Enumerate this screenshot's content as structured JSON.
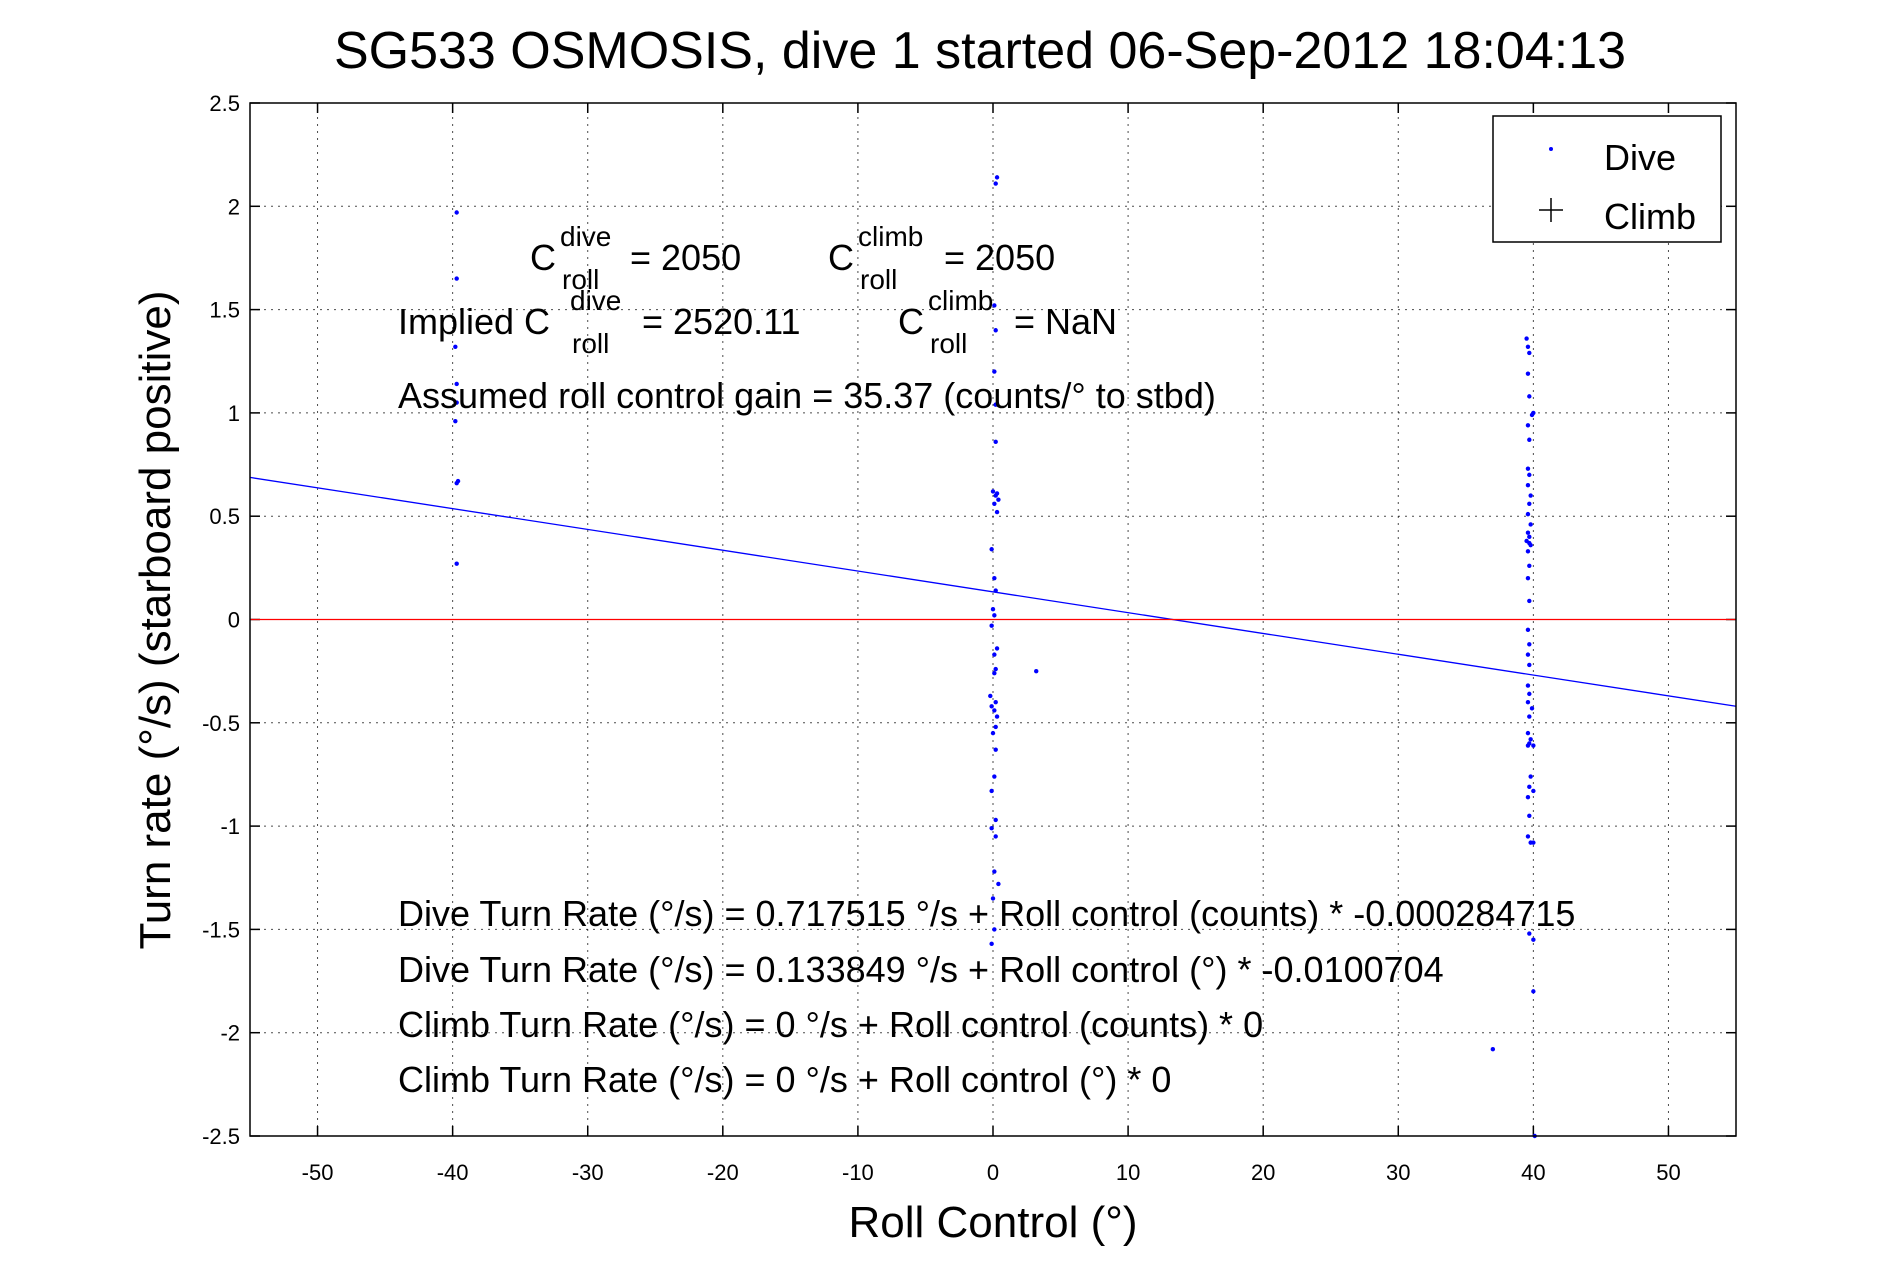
{
  "chart_data": {
    "type": "scatter",
    "title": "SG533 OSMOSIS, dive 1 started 06-Sep-2012 18:04:13",
    "xlabel": "Roll Control (°)",
    "ylabel": "Turn rate (°/s) (starboard positive)",
    "xlim": [
      -55,
      55
    ],
    "ylim": [
      -2.5,
      2.5
    ],
    "xticks": [
      -50,
      -40,
      -30,
      -20,
      -10,
      0,
      10,
      20,
      30,
      40,
      50
    ],
    "yticks": [
      -2.5,
      -2,
      -1.5,
      -1,
      -0.5,
      0,
      0.5,
      1,
      1.5,
      2,
      2.5
    ],
    "grid": true,
    "legend_position": "top-right",
    "legend": [
      {
        "label": "Dive",
        "marker": "dot",
        "color": "#0000ff"
      },
      {
        "label": "Climb",
        "marker": "plus",
        "color": "#000000"
      }
    ],
    "series": [
      {
        "name": "Dive",
        "color": "#0000ff",
        "points": [
          [
            -39.7,
            1.97
          ],
          [
            -39.7,
            1.65
          ],
          [
            -39.8,
            1.32
          ],
          [
            -39.7,
            1.14
          ],
          [
            -39.7,
            1.05
          ],
          [
            -39.8,
            0.96
          ],
          [
            -39.7,
            0.66
          ],
          [
            -39.6,
            0.67
          ],
          [
            -39.7,
            0.27
          ],
          [
            0.3,
            2.14
          ],
          [
            0.2,
            2.11
          ],
          [
            0.1,
            1.52
          ],
          [
            0.2,
            1.4
          ],
          [
            0.1,
            1.2
          ],
          [
            0.2,
            1.04
          ],
          [
            0.2,
            0.86
          ],
          [
            0.0,
            0.62
          ],
          [
            0.3,
            0.61
          ],
          [
            0.2,
            0.6
          ],
          [
            0.4,
            0.58
          ],
          [
            0.1,
            0.56
          ],
          [
            0.3,
            0.52
          ],
          [
            -0.1,
            0.34
          ],
          [
            0.1,
            0.2
          ],
          [
            0.2,
            0.14
          ],
          [
            0.0,
            0.05
          ],
          [
            0.1,
            0.02
          ],
          [
            -0.1,
            -0.03
          ],
          [
            0.3,
            -0.14
          ],
          [
            0.1,
            -0.17
          ],
          [
            0.2,
            -0.24
          ],
          [
            0.1,
            -0.26
          ],
          [
            -0.2,
            -0.37
          ],
          [
            0.2,
            -0.4
          ],
          [
            -0.1,
            -0.42
          ],
          [
            0.1,
            -0.44
          ],
          [
            0.3,
            -0.47
          ],
          [
            0.2,
            -0.52
          ],
          [
            0.0,
            -0.55
          ],
          [
            0.2,
            -0.63
          ],
          [
            0.1,
            -0.76
          ],
          [
            -0.1,
            -0.83
          ],
          [
            0.2,
            -0.97
          ],
          [
            -0.1,
            -1.01
          ],
          [
            0.2,
            -1.05
          ],
          [
            0.1,
            -1.22
          ],
          [
            0.4,
            -1.28
          ],
          [
            0.0,
            -1.35
          ],
          [
            0.1,
            -1.5
          ],
          [
            -0.1,
            -1.57
          ],
          [
            3.2,
            -0.25
          ],
          [
            37.0,
            -2.08
          ],
          [
            39.5,
            1.36
          ],
          [
            39.6,
            1.32
          ],
          [
            39.7,
            1.29
          ],
          [
            39.6,
            1.19
          ],
          [
            39.7,
            1.08
          ],
          [
            40.0,
            1.0
          ],
          [
            39.9,
            0.99
          ],
          [
            39.6,
            0.94
          ],
          [
            39.7,
            0.87
          ],
          [
            39.6,
            0.73
          ],
          [
            39.7,
            0.7
          ],
          [
            39.6,
            0.65
          ],
          [
            39.8,
            0.6
          ],
          [
            39.7,
            0.56
          ],
          [
            39.6,
            0.51
          ],
          [
            39.8,
            0.46
          ],
          [
            39.6,
            0.42
          ],
          [
            39.7,
            0.4
          ],
          [
            39.5,
            0.38
          ],
          [
            39.7,
            0.37
          ],
          [
            39.8,
            0.36
          ],
          [
            39.6,
            0.33
          ],
          [
            39.7,
            0.26
          ],
          [
            39.6,
            0.2
          ],
          [
            39.7,
            0.09
          ],
          [
            39.6,
            -0.05
          ],
          [
            39.7,
            -0.12
          ],
          [
            39.6,
            -0.17
          ],
          [
            39.7,
            -0.22
          ],
          [
            39.6,
            -0.32
          ],
          [
            39.7,
            -0.36
          ],
          [
            39.6,
            -0.4
          ],
          [
            39.9,
            -0.43
          ],
          [
            39.7,
            -0.47
          ],
          [
            39.6,
            -0.55
          ],
          [
            39.8,
            -0.58
          ],
          [
            39.7,
            -0.6
          ],
          [
            39.6,
            -0.61
          ],
          [
            40.0,
            -0.61
          ],
          [
            39.8,
            -0.76
          ],
          [
            39.7,
            -0.81
          ],
          [
            40.0,
            -0.83
          ],
          [
            39.6,
            -0.86
          ],
          [
            39.7,
            -0.95
          ],
          [
            39.6,
            -1.05
          ],
          [
            39.8,
            -1.08
          ],
          [
            40.0,
            -1.08
          ],
          [
            39.7,
            -1.52
          ],
          [
            40.0,
            -1.55
          ],
          [
            40.0,
            -1.8
          ],
          [
            40.1,
            -2.5
          ]
        ]
      },
      {
        "name": "Climb",
        "color": "#000000",
        "points": []
      }
    ],
    "lines": [
      {
        "label": "dive fit",
        "color": "#0000ff",
        "intercept": 0.133849,
        "slope": -0.0100704
      },
      {
        "label": "zero",
        "color": "#ff0000",
        "intercept": 0,
        "slope": 0
      }
    ],
    "annotations": {
      "c_dive_base": "C",
      "c_dive_sup": "dive",
      "c_dive_sub": "roll",
      "c_dive_val": "= 2050",
      "c_climb_base": "C",
      "c_climb_sup": "climb",
      "c_climb_sub": "roll",
      "c_climb_val": "= 2050",
      "implied_prefix": "Implied C",
      "implied_dive_sup": "dive",
      "implied_dive_sub": "roll",
      "implied_dive_val": "= 2520.11",
      "implied_climb_base": "C",
      "implied_climb_sup": "climb",
      "implied_climb_sub": "roll",
      "implied_climb_val": "= NaN",
      "gain": "Assumed roll control gain = 35.37 (counts/° to stbd)",
      "fit_lines": [
        "Dive Turn Rate (°/s) = 0.717515 °/s + Roll control (counts) * -0.000284715",
        "Dive Turn Rate (°/s) = 0.133849 °/s + Roll control (°) * -0.0100704",
        "Climb Turn Rate (°/s) = 0 °/s + Roll control (counts) * 0",
        "Climb Turn Rate (°/s) = 0 °/s + Roll control (°) * 0"
      ]
    }
  }
}
